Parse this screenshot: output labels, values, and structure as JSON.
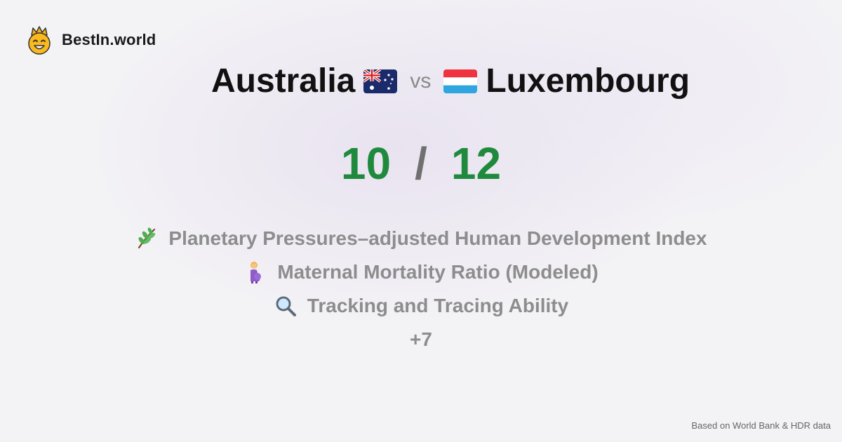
{
  "brand": {
    "name": "BestIn.world",
    "logo_icon": "crowned-smiley-icon"
  },
  "header": {
    "country_a": "Australia",
    "flag_a": "australia-flag-icon",
    "vs": "vs",
    "country_b": "Luxembourg",
    "flag_b": "luxembourg-flag-icon"
  },
  "scores": {
    "a": "10",
    "separator": "/",
    "b": "12",
    "color": "#1f8a3d"
  },
  "metrics": [
    {
      "label": "Planetary Pressures–adjusted Human Development Index",
      "icon": "herb-icon"
    },
    {
      "label": "Maternal Mortality Ratio (Modeled)",
      "icon": "pregnant-woman-icon"
    },
    {
      "label": "Tracking and Tracing Ability",
      "icon": "magnifying-glass-icon"
    }
  ],
  "more_label": "+7",
  "footer": {
    "source": "Based on World Bank & HDR data"
  }
}
